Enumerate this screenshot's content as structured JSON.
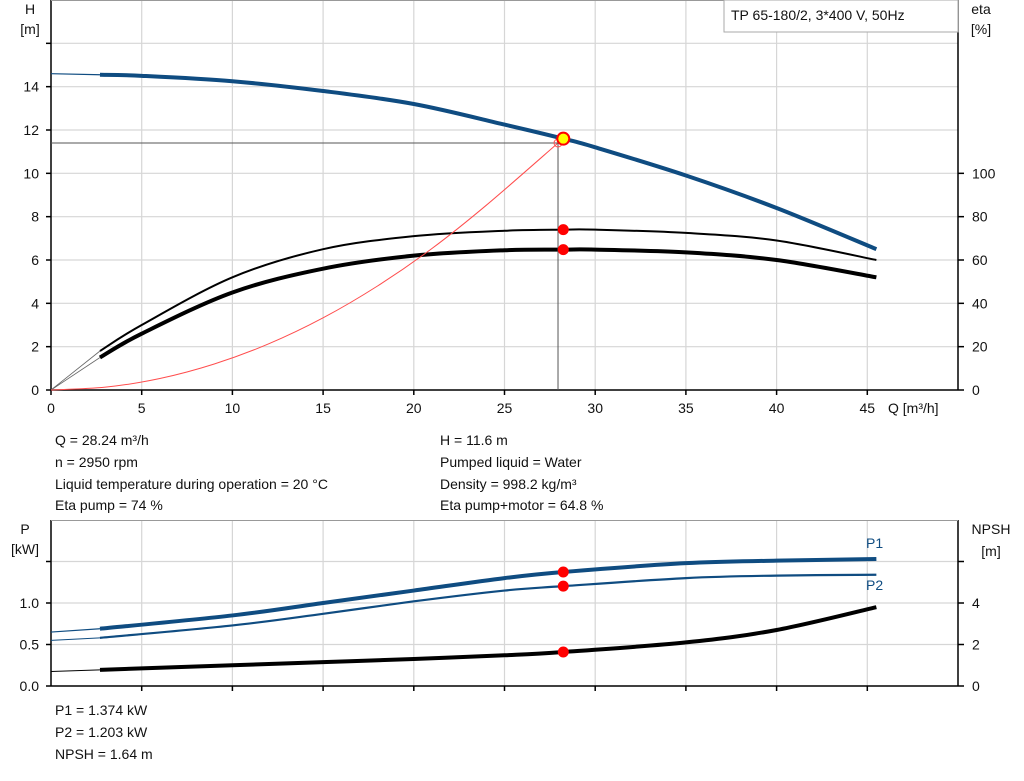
{
  "colors": {
    "head": "#0f4c81",
    "power": "#0f4c81",
    "black": "#000000",
    "system": "#ff4d4d",
    "marker": "#ff0000",
    "duty_fill": "#ffff00",
    "grid": "#d6d6d6"
  },
  "legend_box": "TP 65-180/2, 3*400 V, 50Hz",
  "chart_data": [
    {
      "type": "line",
      "x_label": "Q [m³/h]",
      "y_left_label": [
        "H",
        "[m]"
      ],
      "y_right_label": [
        "eta",
        "[%]"
      ],
      "xlim": [
        0,
        50
      ],
      "ylim_left": [
        0,
        18
      ],
      "ylim_right": [
        0,
        180
      ],
      "grid": true,
      "x_ticks": [
        0,
        5,
        10,
        15,
        20,
        25,
        30,
        35,
        40,
        45
      ],
      "y_left_ticks": [
        0,
        2,
        4,
        6,
        8,
        10,
        12,
        14,
        16
      ],
      "y_left_tick_labels": [
        "0",
        "2",
        "4",
        "6",
        "8",
        "10",
        "12",
        "14",
        ""
      ],
      "y_right_ticks": [
        0,
        20,
        40,
        60,
        80,
        100
      ],
      "series": [
        {
          "id": "head",
          "axis": "left",
          "q": [
            0,
            2.7,
            5,
            10,
            15,
            20,
            25,
            28.24,
            30,
            35,
            40,
            45.5
          ],
          "values": [
            14.6,
            14.55,
            14.5,
            14.25,
            13.8,
            13.2,
            12.25,
            11.6,
            11.2,
            9.9,
            8.4,
            6.5
          ]
        },
        {
          "id": "eta_pump",
          "axis": "right",
          "q": [
            0,
            2.7,
            5,
            10,
            15,
            20,
            25,
            28.24,
            30,
            35,
            40,
            45.5
          ],
          "values": [
            0,
            18,
            30,
            52,
            65,
            71,
            73.5,
            74,
            74,
            72.5,
            69,
            60
          ]
        },
        {
          "id": "eta_pump_motor",
          "axis": "right",
          "q": [
            0,
            2.7,
            5,
            10,
            15,
            20,
            25,
            28.24,
            30,
            35,
            40,
            45.5
          ],
          "values": [
            0,
            15,
            26,
            45,
            56,
            62,
            64.5,
            64.8,
            64.8,
            63.5,
            60,
            52
          ]
        },
        {
          "id": "system_curve",
          "axis": "left",
          "q": [
            0,
            3,
            6,
            9,
            12,
            15,
            18,
            21,
            24,
            27.95
          ],
          "values": [
            0,
            0.13,
            0.53,
            1.2,
            2.13,
            3.33,
            4.8,
            6.53,
            8.53,
            11.4
          ]
        }
      ],
      "markers": [
        {
          "id": "duty_point",
          "q": 28.24,
          "value": 11.6,
          "axis": "left"
        },
        {
          "id": "eta_pump_point",
          "q": 28.24,
          "value": 74,
          "axis": "right"
        },
        {
          "id": "eta_pump_motor_point",
          "q": 28.24,
          "value": 64.8,
          "axis": "right"
        }
      ]
    },
    {
      "type": "line",
      "y_left_label": [
        "P",
        "[kW]"
      ],
      "y_right_label": [
        "NPSH",
        "[m]"
      ],
      "xlim": [
        0,
        50
      ],
      "ylim_left": [
        0,
        2
      ],
      "ylim_right": [
        0,
        8
      ],
      "grid": true,
      "y_left_ticks": [
        0,
        0.5,
        1.0,
        1.5
      ],
      "y_left_tick_labels": [
        "0.0",
        "0.5",
        "1.0",
        ""
      ],
      "y_right_ticks": [
        0,
        2,
        4,
        6
      ],
      "y_right_tick_labels": [
        "0",
        "2",
        "4",
        ""
      ],
      "series": [
        {
          "id": "P1",
          "name": "P1",
          "axis": "left",
          "q": [
            0,
            2.7,
            10,
            15,
            20,
            25,
            28.24,
            35,
            40,
            45.5
          ],
          "values": [
            0.65,
            0.69,
            0.85,
            1.0,
            1.15,
            1.3,
            1.374,
            1.48,
            1.51,
            1.53
          ]
        },
        {
          "id": "P2",
          "name": "P2",
          "axis": "left",
          "q": [
            0,
            2.7,
            10,
            15,
            20,
            25,
            28.24,
            35,
            40,
            45.5
          ],
          "values": [
            0.55,
            0.58,
            0.73,
            0.87,
            1.02,
            1.15,
            1.203,
            1.3,
            1.33,
            1.34
          ]
        },
        {
          "id": "NPSH",
          "axis": "right",
          "q": [
            0,
            2.7,
            10,
            15,
            20,
            25,
            28.24,
            35,
            40,
            45.5
          ],
          "values": [
            0.7,
            0.78,
            1.0,
            1.15,
            1.3,
            1.48,
            1.64,
            2.1,
            2.7,
            3.8
          ]
        }
      ],
      "markers": [
        {
          "id": "P1_point",
          "q": 28.24,
          "value": 1.374,
          "axis": "left"
        },
        {
          "id": "P2_point",
          "q": 28.24,
          "value": 1.203,
          "axis": "left"
        },
        {
          "id": "NPSH_point",
          "q": 28.24,
          "value": 1.64,
          "axis": "right"
        }
      ]
    }
  ],
  "info_left": [
    "Q = 28.24 m³/h",
    "n = 2950 rpm",
    "Liquid temperature during operation = 20 °C",
    "Eta pump = 74 %"
  ],
  "info_right": [
    "H = 11.6 m",
    "Pumped liquid = Water",
    "Density = 998.2 kg/m³",
    "Eta pump+motor = 64.8 %"
  ],
  "info_bottom": [
    "P1 = 1.374 kW",
    "P2 = 1.203 kW",
    "NPSH = 1.64 m"
  ]
}
